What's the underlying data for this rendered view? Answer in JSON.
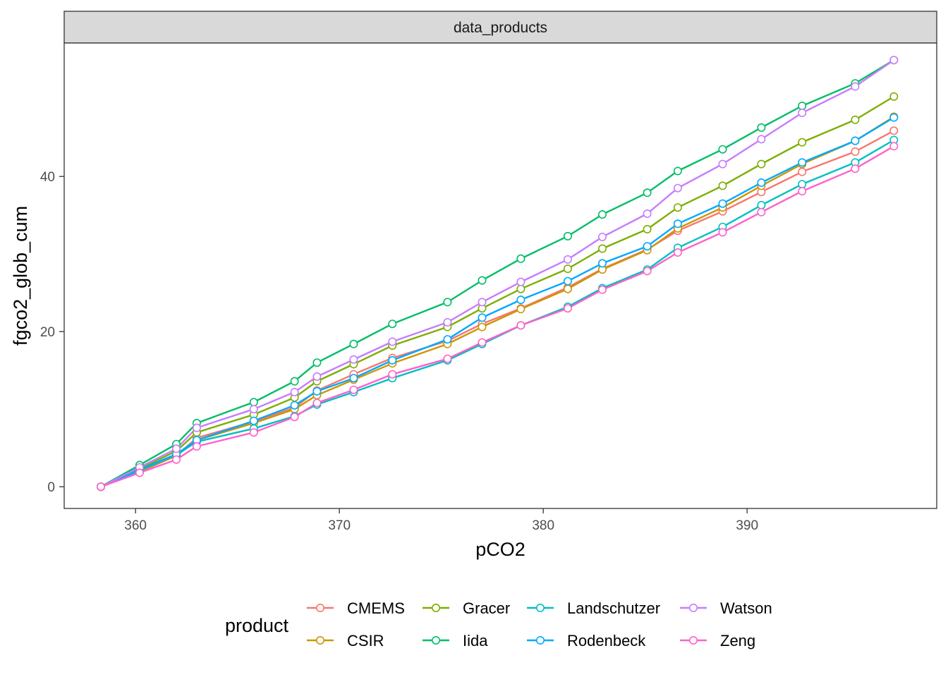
{
  "chart_data": {
    "type": "line",
    "facet_label": "data_products",
    "xlabel": "pCO2",
    "ylabel": "fgco2_glob_cum",
    "xlim": [
      356.5,
      399.3
    ],
    "ylim": [
      -2.8,
      57.2
    ],
    "x_ticks": [
      360,
      370,
      380,
      390
    ],
    "y_ticks": [
      0,
      20,
      40
    ],
    "grid": false,
    "legend": {
      "title": "product",
      "position": "bottom"
    },
    "x": [
      358.3,
      360.2,
      362.0,
      363.0,
      365.8,
      367.8,
      368.9,
      370.7,
      372.6,
      375.3,
      377.0,
      378.9,
      381.2,
      382.9,
      385.1,
      386.6,
      388.8,
      390.7,
      392.7,
      395.3,
      397.2
    ],
    "series": [
      {
        "name": "CMEMS",
        "color": "#F8766D",
        "values": [
          0,
          1.9,
          4.0,
          6.3,
          8.4,
          10.2,
          12.4,
          14.5,
          16.6,
          18.8,
          21.0,
          23.0,
          25.7,
          28.1,
          30.6,
          33.0,
          35.5,
          38.0,
          40.6,
          43.2,
          45.9
        ]
      },
      {
        "name": "CSIR",
        "color": "#CD9600",
        "values": [
          0,
          2.0,
          4.0,
          6.0,
          8.2,
          10.0,
          11.8,
          13.8,
          15.9,
          18.4,
          20.6,
          22.9,
          25.5,
          28.0,
          30.5,
          33.3,
          36.0,
          38.8,
          41.6,
          44.6,
          47.7
        ]
      },
      {
        "name": "Gracer",
        "color": "#7CAE00",
        "values": [
          0,
          2.3,
          4.6,
          7.0,
          9.3,
          11.5,
          13.6,
          15.8,
          18.2,
          20.6,
          23.0,
          25.5,
          28.1,
          30.7,
          33.2,
          36.0,
          38.8,
          41.6,
          44.4,
          47.3,
          50.3
        ]
      },
      {
        "name": "Iida",
        "color": "#00BE67",
        "values": [
          0,
          2.8,
          5.5,
          8.2,
          10.9,
          13.6,
          16.0,
          18.4,
          21.0,
          23.8,
          26.6,
          29.4,
          32.3,
          35.1,
          37.9,
          40.7,
          43.5,
          46.3,
          49.1,
          52.0,
          55.0
        ]
      },
      {
        "name": "Landschutzer",
        "color": "#00BFC4",
        "values": [
          0,
          2.1,
          4.1,
          5.8,
          7.5,
          9.1,
          10.6,
          12.2,
          14.0,
          16.3,
          18.4,
          20.8,
          23.2,
          25.6,
          28.0,
          30.8,
          33.5,
          36.3,
          39.0,
          41.8,
          44.7
        ]
      },
      {
        "name": "Rodenbeck",
        "color": "#00A9FF",
        "values": [
          0,
          2.2,
          4.2,
          6.0,
          8.5,
          10.5,
          12.3,
          14.0,
          16.3,
          19.0,
          21.8,
          24.1,
          26.5,
          28.8,
          31.0,
          33.9,
          36.5,
          39.2,
          41.8,
          44.6,
          47.6
        ]
      },
      {
        "name": "Watson",
        "color": "#C77CFF",
        "values": [
          0,
          2.5,
          4.9,
          7.6,
          10.0,
          12.2,
          14.2,
          16.4,
          18.7,
          21.2,
          23.8,
          26.4,
          29.3,
          32.2,
          35.2,
          38.5,
          41.6,
          44.8,
          48.2,
          51.6,
          55.0
        ]
      },
      {
        "name": "Zeng",
        "color": "#FF61CC",
        "values": [
          0,
          1.8,
          3.5,
          5.2,
          7.0,
          9.0,
          10.8,
          12.5,
          14.5,
          16.5,
          18.6,
          20.8,
          23.0,
          25.4,
          27.8,
          30.2,
          32.8,
          35.4,
          38.1,
          41.0,
          43.9
        ]
      }
    ]
  }
}
